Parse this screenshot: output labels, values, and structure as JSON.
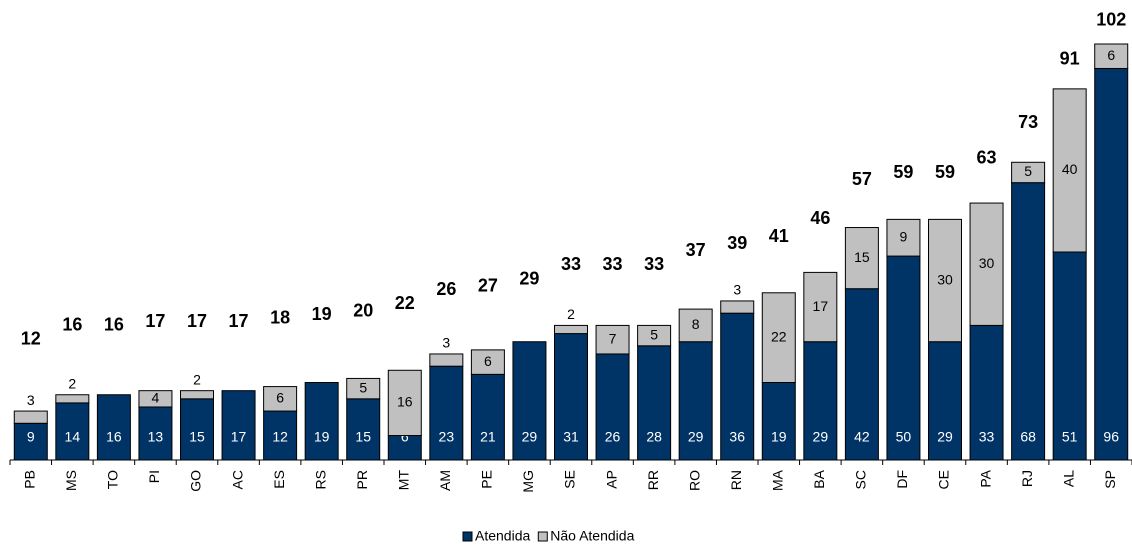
{
  "chart_data": {
    "type": "stacked_bar",
    "categories": [
      "PB",
      "MS",
      "TO",
      "PI",
      "GO",
      "AC",
      "ES",
      "RS",
      "PR",
      "MT",
      "AM",
      "PE",
      "MG",
      "SE",
      "AP",
      "RR",
      "RO",
      "RN",
      "MA",
      "BA",
      "SC",
      "DF",
      "CE",
      "PA",
      "RJ",
      "AL",
      "SP"
    ],
    "series": [
      {
        "name": "Atendida",
        "color": "#003366",
        "values": [
          9,
          14,
          16,
          13,
          15,
          17,
          12,
          19,
          15,
          6,
          23,
          21,
          29,
          31,
          26,
          28,
          29,
          36,
          19,
          29,
          42,
          50,
          29,
          33,
          68,
          51,
          96
        ]
      },
      {
        "name": "Não Atendida",
        "color": "#c0c0c0",
        "values": [
          3,
          2,
          null,
          4,
          2,
          null,
          6,
          null,
          5,
          16,
          3,
          6,
          null,
          2,
          7,
          5,
          8,
          3,
          22,
          17,
          15,
          9,
          30,
          30,
          5,
          40,
          6
        ]
      }
    ],
    "totals": [
      12,
      16,
      16,
      17,
      17,
      17,
      18,
      19,
      20,
      22,
      26,
      27,
      29,
      33,
      33,
      33,
      37,
      39,
      41,
      46,
      57,
      59,
      59,
      63,
      73,
      91,
      102
    ],
    "ylim": [
      0,
      102
    ],
    "legend": "bottom"
  }
}
